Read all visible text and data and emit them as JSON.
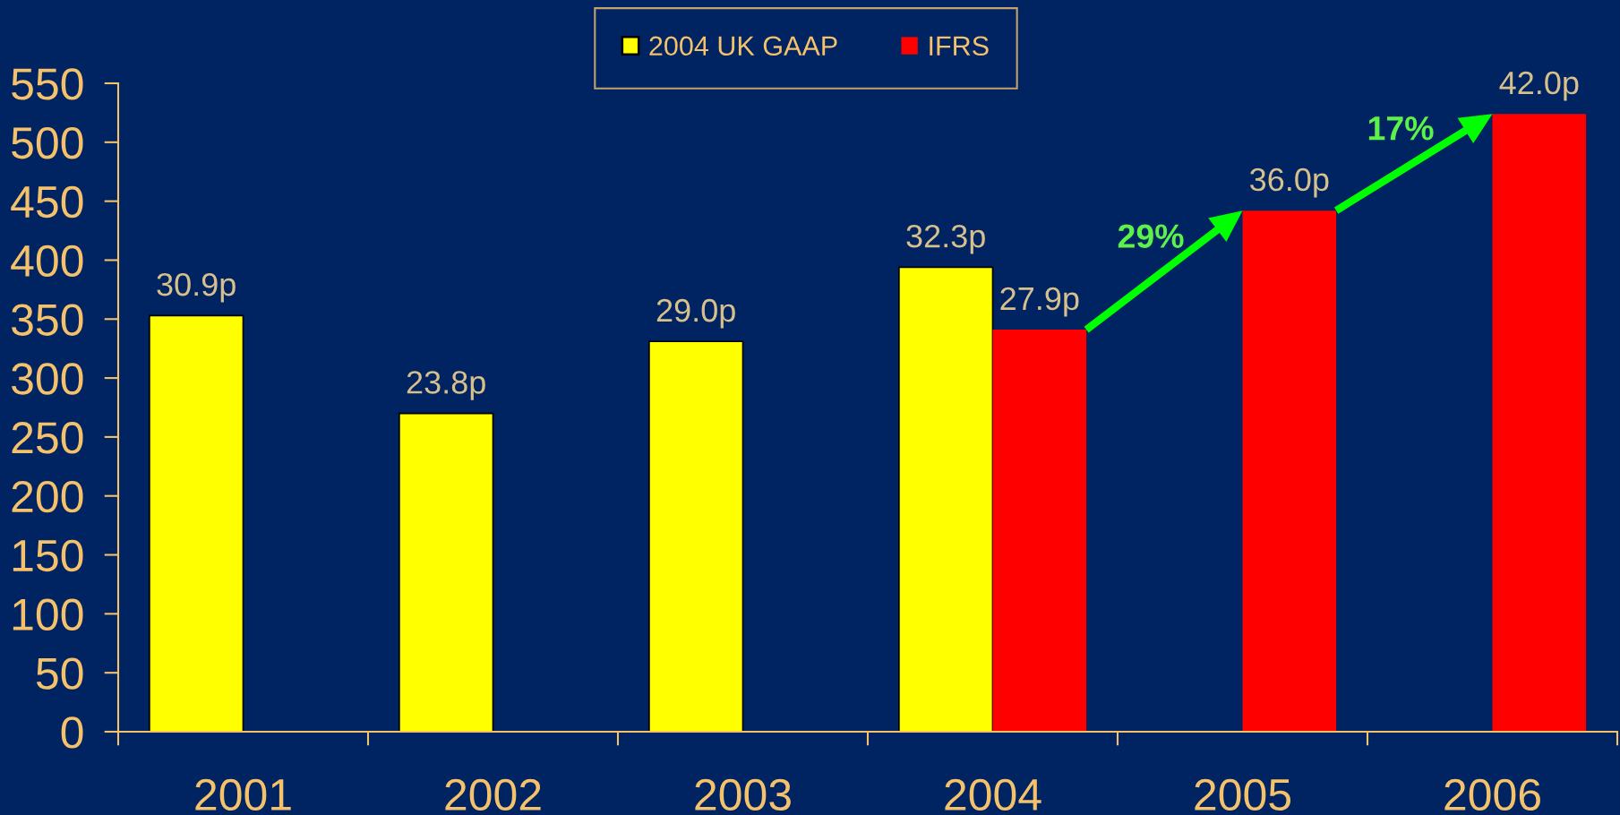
{
  "chart_data": {
    "type": "bar",
    "categories": [
      "2001",
      "2002",
      "2003",
      "2004",
      "2005",
      "2006"
    ],
    "series": [
      {
        "name": "2004 UK GAAP",
        "color": "#ffff00",
        "values": [
          353,
          270,
          331,
          394,
          null,
          null
        ]
      },
      {
        "name": "IFRS",
        "color": "#ff0000",
        "values": [
          null,
          null,
          null,
          341,
          442,
          524
        ]
      }
    ],
    "ylim": [
      0,
      550
    ],
    "yticks": [
      0,
      50,
      100,
      150,
      200,
      250,
      300,
      350,
      400,
      450,
      500,
      550
    ],
    "legend": "top",
    "annotations": [
      {
        "text": "30.9p",
        "x": "2001",
        "y": 353
      },
      {
        "text": "23.8p",
        "x": "2002",
        "y": 270
      },
      {
        "text": "29.0p",
        "x": "2003",
        "y": 331
      },
      {
        "text": "32.3p",
        "x": "2004",
        "y": 394
      },
      {
        "text": "27.9p",
        "x": "2004",
        "y": 341
      },
      {
        "text": "36.0p",
        "x": "2005",
        "y": 442
      },
      {
        "text": "42.0p",
        "x": "2006",
        "y": 524
      },
      "29%",
      "17%"
    ]
  }
}
